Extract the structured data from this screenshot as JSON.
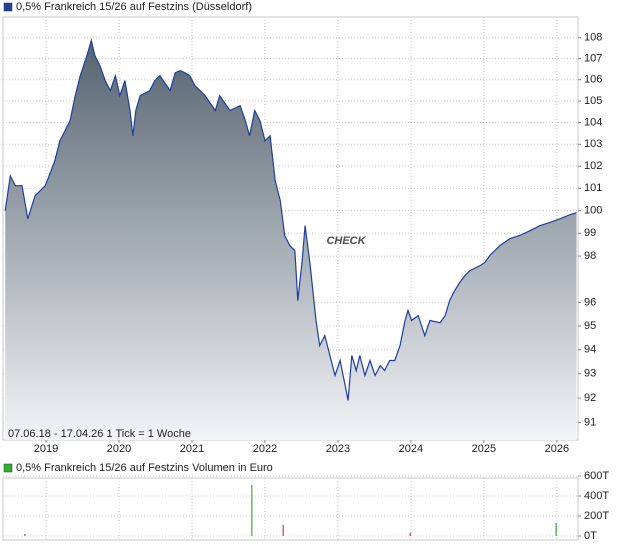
{
  "chart_data": [
    {
      "type": "area",
      "log_scale": true,
      "grid": true,
      "note": "07.06.18 - 17.04.26   1 Tick = 1 Woche",
      "watermark": "CHECK",
      "xlim": [
        2018.41,
        2026.29
      ],
      "xticks": [
        2019,
        2020,
        2021,
        2022,
        2023,
        2024,
        2025,
        2026
      ],
      "ylim": [
        90.3,
        109
      ],
      "yticks": [
        91,
        92,
        93,
        94,
        95,
        96,
        98,
        99,
        100,
        101,
        102,
        103,
        104,
        105,
        106,
        107,
        108
      ],
      "area_colors": [
        "#55636f",
        "#f3f4f8"
      ],
      "x": [
        2018.44,
        2018.51,
        2018.58,
        2018.67,
        2018.75,
        2018.85,
        2018.99,
        2019.12,
        2019.19,
        2019.33,
        2019.4,
        2019.47,
        2019.56,
        2019.62,
        2019.67,
        2019.74,
        2019.81,
        2019.88,
        2019.95,
        2020.01,
        2020.08,
        2020.15,
        2020.19,
        2020.23,
        2020.29,
        2020.42,
        2020.49,
        2020.56,
        2020.7,
        2020.77,
        2020.84,
        2020.9,
        2020.97,
        2021.04,
        2021.18,
        2021.32,
        2021.38,
        2021.52,
        2021.66,
        2021.73,
        2021.79,
        2021.86,
        2021.93,
        2022.0,
        2022.07,
        2022.14,
        2022.21,
        2022.27,
        2022.34,
        2022.41,
        2022.45,
        2022.51,
        2022.55,
        2022.62,
        2022.7,
        2022.75,
        2022.82,
        2022.89,
        2022.96,
        2023.03,
        2023.1,
        2023.14,
        2023.19,
        2023.25,
        2023.3,
        2023.37,
        2023.44,
        2023.51,
        2023.58,
        2023.64,
        2023.71,
        2023.78,
        2023.85,
        2023.92,
        2023.96,
        2024.01,
        2024.1,
        2024.19,
        2024.26,
        2024.4,
        2024.47,
        2024.53,
        2024.6,
        2024.67,
        2024.74,
        2024.81,
        2024.95,
        2025.01,
        2025.08,
        2025.22,
        2025.36,
        2025.49,
        2025.63,
        2025.77,
        2025.9,
        2026.04,
        2026.18,
        2026.27
      ],
      "series": [
        {
          "name": "0,5% Frankreich 15/26 auf Festzins (Düsseldorf)",
          "color": "#1e3f9e",
          "values": [
            100.0,
            101.56,
            101.12,
            101.12,
            99.64,
            100.67,
            101.12,
            102.24,
            103.16,
            104.09,
            105.25,
            106.19,
            107.14,
            107.86,
            107.14,
            106.66,
            105.96,
            105.49,
            106.19,
            105.25,
            105.96,
            104.56,
            103.39,
            104.56,
            105.25,
            105.49,
            105.96,
            106.19,
            105.49,
            106.33,
            106.43,
            106.33,
            106.19,
            105.72,
            105.25,
            104.56,
            105.25,
            104.56,
            104.78,
            104.09,
            103.39,
            104.56,
            104.09,
            103.16,
            103.39,
            101.34,
            100.44,
            98.9,
            98.46,
            98.23,
            96.08,
            97.81,
            99.34,
            97.59,
            95.23,
            94.17,
            94.59,
            93.76,
            92.93,
            93.55,
            92.51,
            91.9,
            93.76,
            93.13,
            93.76,
            92.93,
            93.55,
            92.93,
            93.34,
            93.13,
            93.55,
            93.55,
            94.17,
            95.23,
            95.66,
            95.23,
            95.44,
            94.59,
            95.23,
            95.14,
            95.44,
            96.08,
            96.51,
            96.86,
            97.15,
            97.37,
            97.59,
            97.71,
            98.02,
            98.46,
            98.77,
            98.9,
            99.11,
            99.34,
            99.47,
            99.64,
            99.82,
            99.91
          ]
        }
      ]
    },
    {
      "type": "bar",
      "grid": true,
      "xlim": [
        2018.41,
        2026.29
      ],
      "ylim": [
        -40,
        580
      ],
      "yticks": [
        {
          "value": 0,
          "label": "0T"
        },
        {
          "value": 200,
          "label": "200T"
        },
        {
          "value": 400,
          "label": "400T"
        },
        {
          "value": 600,
          "label": "600T"
        }
      ],
      "x": [
        2018.71,
        2021.82,
        2022.25,
        2023.99,
        2025.99
      ],
      "series": [
        {
          "name": "0,5% Frankreich 15/26 auf Festzins Volumen in Euro",
          "color": "#33b033",
          "values": [
            20,
            510,
            110,
            30,
            130
          ],
          "bar_colors": [
            "#d04040",
            "#33b033",
            "#d04040",
            "#d04040",
            "#33b033"
          ]
        }
      ]
    }
  ]
}
